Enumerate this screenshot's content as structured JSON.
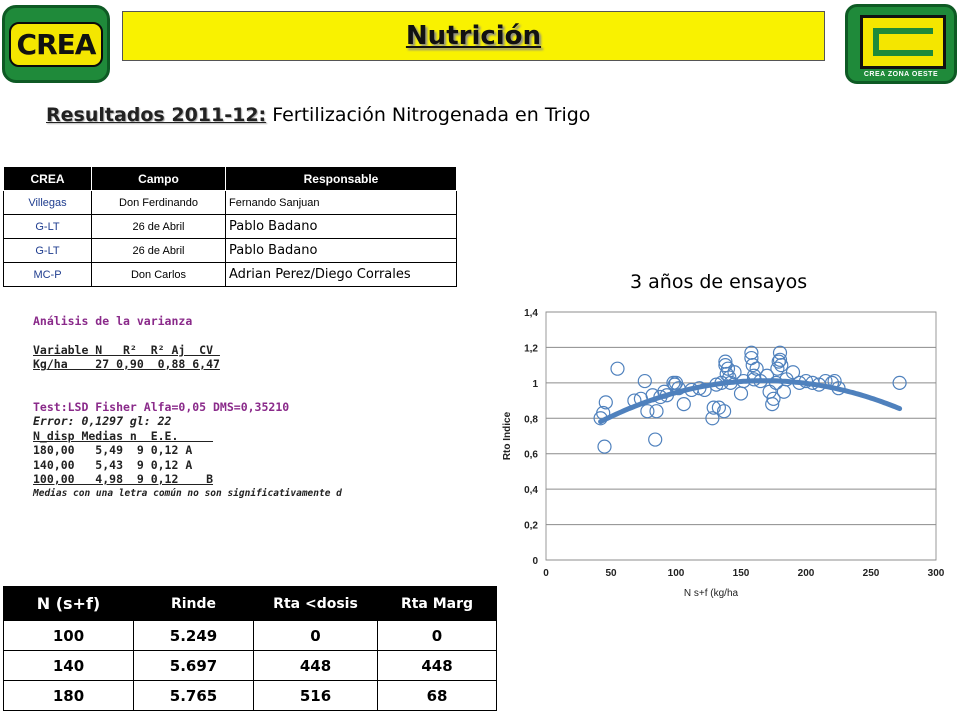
{
  "header": {
    "logo_left_text": "CREA",
    "title": "Nutrición",
    "logo_right_text": "CREA ZONA OESTE"
  },
  "subtitle": {
    "prefix": "Resultados 2011-12:",
    "text": " Fertilización Nitrogenada en Trigo"
  },
  "trials_table": {
    "headers": [
      "CREA",
      "Campo",
      "Responsable"
    ],
    "rows": [
      [
        "Villegas",
        "Don Ferdinando",
        "Fernando Sanjuan"
      ],
      [
        "G-LT",
        "26 de Abril",
        "Pablo Badano"
      ],
      [
        "G-LT",
        "26 de Abril",
        "Pablo Badano"
      ],
      [
        "MC-P",
        "Don Carlos",
        "Adrian Perez/Diego Corrales"
      ]
    ]
  },
  "anova": {
    "title": "Análisis de la varianza",
    "header_row": "Variable N   R²  R² Aj  CV ",
    "data_row": "Kg/ha    27 0,90  0,88 6,47",
    "test_line": "Test:LSD Fisher Alfa=0,05 DMS=0,35210",
    "error_line": "Error: 0,1297 gl: 22",
    "col_header": "N_disp Medias n  E.E.     ",
    "rows": [
      "180,00   5,49  9 0,12 A   ",
      "140,00   5,43  9 0,12 A   ",
      "100,00   4,98  9 0,12    B"
    ],
    "footnote": "Medias con una letra común no son significativamente d"
  },
  "results_table": {
    "headers": [
      "N (s+f)",
      "Rinde",
      "Rta <dosis",
      "Rta Marg"
    ],
    "rows": [
      [
        "100",
        "5.249",
        "0",
        "0"
      ],
      [
        "140",
        "5.697",
        "448",
        "448"
      ],
      [
        "180",
        "5.765",
        "516",
        "68"
      ]
    ]
  },
  "chart_data": {
    "type": "scatter",
    "title": "3 años de ensayos",
    "xlabel": "N s+f (kg/ha",
    "ylabel": "Rto Indice",
    "xlim": [
      0,
      300
    ],
    "ylim": [
      0,
      1.4
    ],
    "xticks": [
      "0",
      "50",
      "100",
      "150",
      "200",
      "250",
      "300"
    ],
    "yticks": [
      "0",
      "0,2",
      "0,4",
      "0,6",
      "0,8",
      "1",
      "1,2",
      "1,4"
    ],
    "grid": true,
    "marker_color": "#4f81bd",
    "trend_color": "#4f81bd",
    "points": [
      [
        42,
        0.8
      ],
      [
        44,
        0.83
      ],
      [
        45,
        0.64
      ],
      [
        46,
        0.89
      ],
      [
        55,
        1.08
      ],
      [
        68,
        0.9
      ],
      [
        73,
        0.91
      ],
      [
        76,
        1.01
      ],
      [
        78,
        0.84
      ],
      [
        82,
        0.93
      ],
      [
        84,
        0.68
      ],
      [
        85,
        0.84
      ],
      [
        88,
        0.92
      ],
      [
        91,
        0.95
      ],
      [
        93,
        0.93
      ],
      [
        98,
        1.0
      ],
      [
        99,
        0.99
      ],
      [
        100,
        1.0
      ],
      [
        102,
        0.97
      ],
      [
        106,
        0.88
      ],
      [
        112,
        0.96
      ],
      [
        118,
        0.97
      ],
      [
        122,
        0.96
      ],
      [
        128,
        0.8
      ],
      [
        129,
        0.86
      ],
      [
        131,
        0.99
      ],
      [
        133,
        0.86
      ],
      [
        135,
        1.0
      ],
      [
        137,
        0.84
      ],
      [
        138,
        1.12
      ],
      [
        138,
        1.1
      ],
      [
        139,
        1.05
      ],
      [
        140,
        1.08
      ],
      [
        141,
        1.03
      ],
      [
        142,
        1.0
      ],
      [
        145,
        1.06
      ],
      [
        150,
        0.94
      ],
      [
        152,
        1.01
      ],
      [
        158,
        1.17
      ],
      [
        158,
        1.14
      ],
      [
        159,
        1.1
      ],
      [
        160,
        1.04
      ],
      [
        160,
        1.02
      ],
      [
        162,
        1.08
      ],
      [
        165,
        1.01
      ],
      [
        170,
        1.04
      ],
      [
        172,
        0.95
      ],
      [
        174,
        0.88
      ],
      [
        175,
        0.91
      ],
      [
        177,
        1.0
      ],
      [
        178,
        1.08
      ],
      [
        179,
        1.12
      ],
      [
        180,
        1.17
      ],
      [
        180,
        1.13
      ],
      [
        181,
        1.1
      ],
      [
        183,
        0.95
      ],
      [
        185,
        1.02
      ],
      [
        190,
        1.06
      ],
      [
        195,
        1.0
      ],
      [
        200,
        1.01
      ],
      [
        205,
        1.0
      ],
      [
        210,
        0.99
      ],
      [
        215,
        1.01
      ],
      [
        220,
        1.0
      ],
      [
        222,
        1.01
      ],
      [
        225,
        0.97
      ],
      [
        272,
        1.0
      ]
    ],
    "trend_x": [
      42,
      272
    ],
    "trend_coefficients": [
      0.6015,
      0.004893,
      -1.457e-05
    ]
  }
}
